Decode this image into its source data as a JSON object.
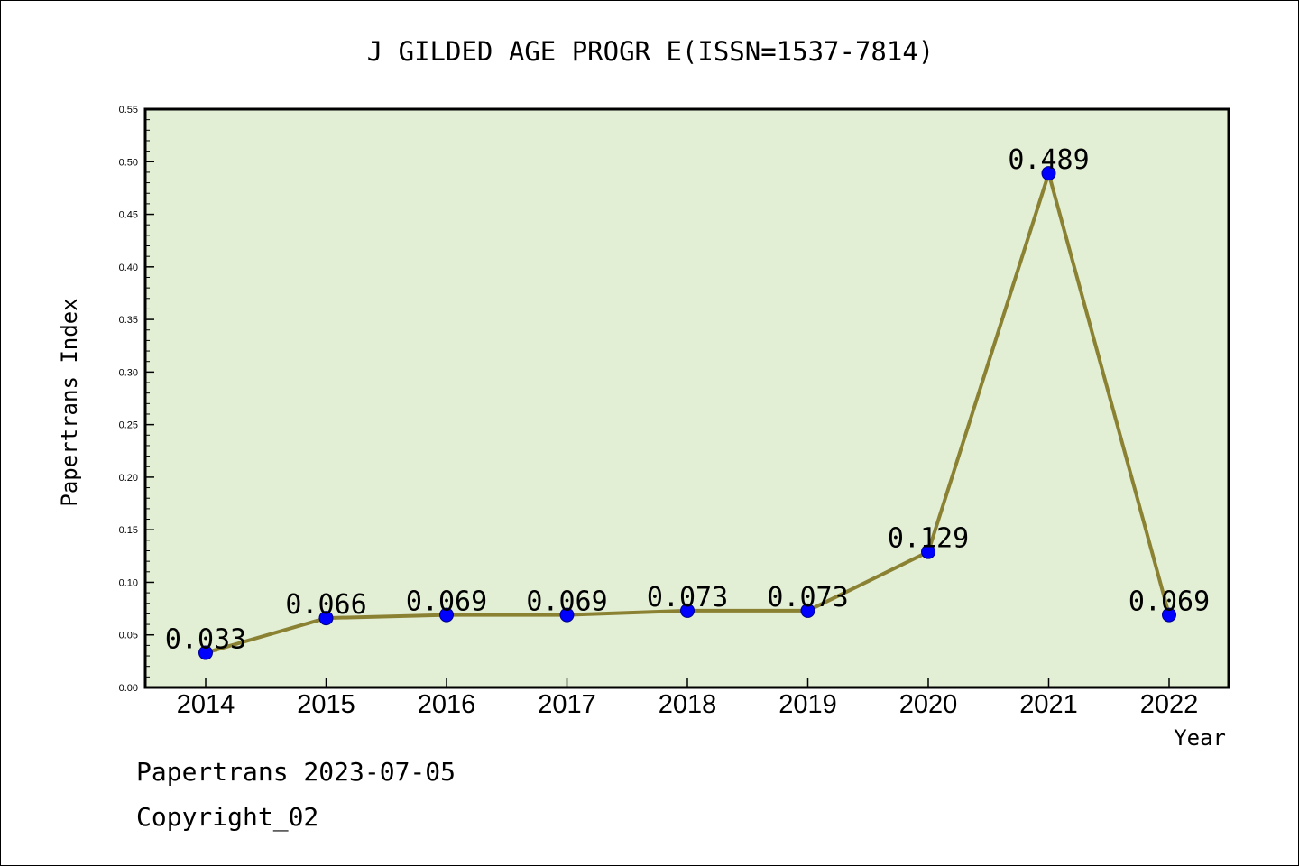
{
  "chart_data": {
    "type": "line",
    "title": "J GILDED AGE PROGR E(ISSN=1537-7814)",
    "xlabel": "Year",
    "ylabel": "Papertrans Index",
    "categories": [
      "2014",
      "2015",
      "2016",
      "2017",
      "2018",
      "2019",
      "2020",
      "2021",
      "2022"
    ],
    "series": [
      {
        "values": [
          0.033,
          0.066,
          0.069,
          0.069,
          0.073,
          0.073,
          0.129,
          0.489,
          0.069
        ],
        "labels": [
          "0.033",
          "0.066",
          "0.069",
          "0.069",
          "0.073",
          "0.073",
          "0.129",
          "0.489",
          "0.069"
        ]
      }
    ],
    "ylim": [
      0,
      0.55
    ],
    "yticks": [
      "0.00",
      "0.05",
      "0.10",
      "0.15",
      "0.20",
      "0.25",
      "0.30",
      "0.35",
      "0.40",
      "0.45",
      "0.50",
      "0.55"
    ],
    "grid": false,
    "colors": {
      "plot_background": "#e2efd5",
      "line": "#8b8133",
      "marker": "#0000ff"
    }
  },
  "footer": {
    "date_line": "Papertrans 2023-07-05",
    "copyright": "Copyright_02"
  }
}
